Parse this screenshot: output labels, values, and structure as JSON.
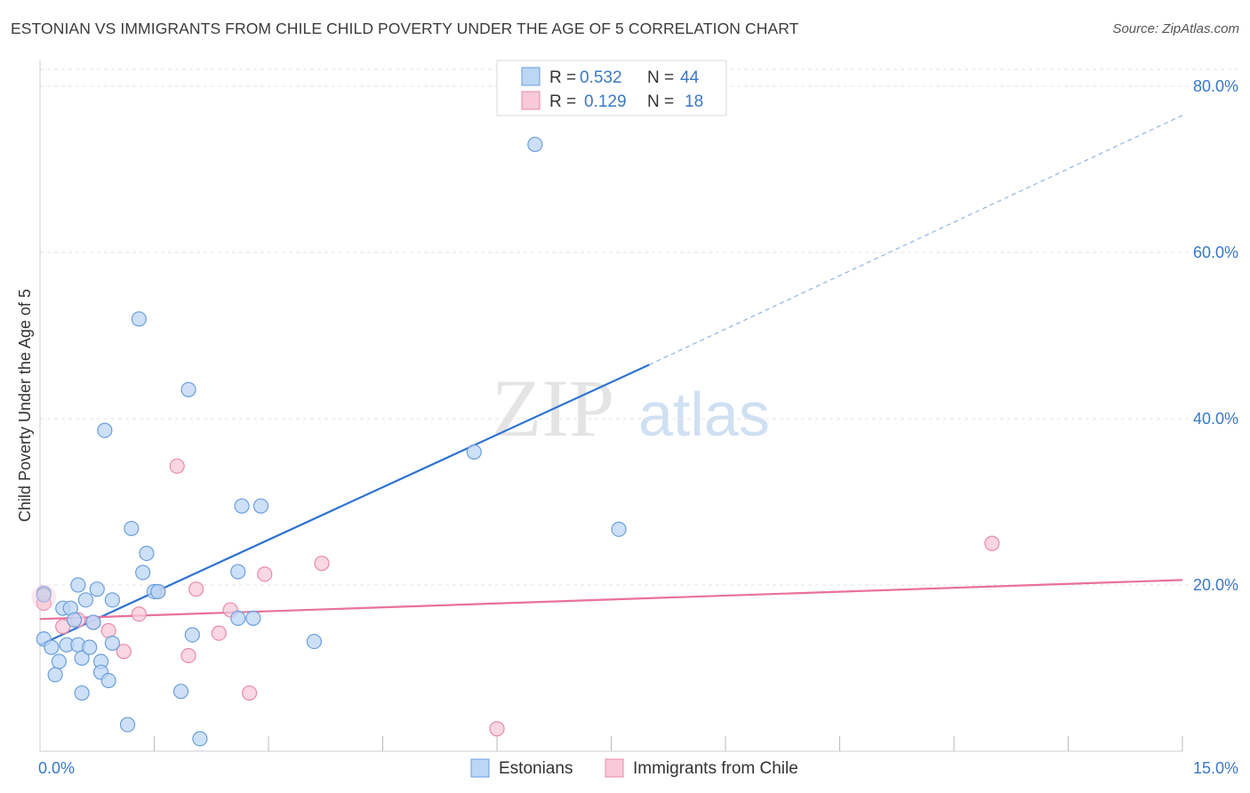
{
  "title": "ESTONIAN VS IMMIGRANTS FROM CHILE CHILD POVERTY UNDER THE AGE OF 5 CORRELATION CHART",
  "source": "Source: ZipAtlas.com",
  "watermark": {
    "zip": "ZIP",
    "atlas": "atlas"
  },
  "colors": {
    "blue_fill": "#bcd6f5",
    "blue_stroke": "#6a9fdc",
    "blue_line": "#2f73cf",
    "pink_fill": "#f8c9d8",
    "pink_stroke": "#e98aa8",
    "pink_line": "#e8719a",
    "axis_text": "#3a78c8",
    "grid": "#e3e3e3"
  },
  "legend": {
    "r_label": "R =",
    "n_label": "N =",
    "rows": [
      {
        "series": "Estonians",
        "r": "0.532",
        "n": "44"
      },
      {
        "series": "Immigrants from Chile",
        "r": "0.129",
        "n": "18"
      }
    ]
  },
  "chart_data": {
    "type": "scatter",
    "title": "ESTONIAN VS IMMIGRANTS FROM CHILE CHILD POVERTY UNDER THE AGE OF 5 CORRELATION CHART",
    "xlabel": "",
    "ylabel": "Child Poverty Under the Age of 5",
    "xlim": [
      0,
      15
    ],
    "ylim": [
      0,
      80
    ],
    "x_tick_labels": [
      {
        "value": 0,
        "label": "0.0%"
      },
      {
        "value": 15,
        "label": "15.0%"
      }
    ],
    "x_minor_ticks": [
      1.5,
      3.0,
      4.5,
      6.0,
      7.5,
      9.0,
      10.5,
      12.0,
      13.5,
      15.0
    ],
    "y_ticks": [
      {
        "value": 20,
        "label": "20.0%"
      },
      {
        "value": 40,
        "label": "40.0%"
      },
      {
        "value": 60,
        "label": "60.0%"
      },
      {
        "value": 80,
        "label": "80.0%"
      }
    ],
    "grid": true,
    "legend_position": "top-center",
    "series": [
      {
        "name": "Estonians",
        "color": "blue",
        "points": [
          [
            0.05,
            19.0
          ],
          [
            0.05,
            13.5
          ],
          [
            0.15,
            12.5
          ],
          [
            0.2,
            9.2
          ],
          [
            0.25,
            10.8
          ],
          [
            0.3,
            17.2
          ],
          [
            0.35,
            12.8
          ],
          [
            0.4,
            17.2
          ],
          [
            0.45,
            15.8
          ],
          [
            0.5,
            12.8
          ],
          [
            0.5,
            20.0
          ],
          [
            0.55,
            7.0
          ],
          [
            0.55,
            11.2
          ],
          [
            0.6,
            18.2
          ],
          [
            0.65,
            12.5
          ],
          [
            0.7,
            15.5
          ],
          [
            0.75,
            19.5
          ],
          [
            0.8,
            10.8
          ],
          [
            0.8,
            9.5
          ],
          [
            0.85,
            38.6
          ],
          [
            0.9,
            8.5
          ],
          [
            0.95,
            13.0
          ],
          [
            0.95,
            18.2
          ],
          [
            1.15,
            3.2
          ],
          [
            1.2,
            26.8
          ],
          [
            1.3,
            52.0
          ],
          [
            1.35,
            21.5
          ],
          [
            1.4,
            23.8
          ],
          [
            1.5,
            19.2
          ],
          [
            1.55,
            19.2
          ],
          [
            1.85,
            7.2
          ],
          [
            1.95,
            43.5
          ],
          [
            2.0,
            14.0
          ],
          [
            2.1,
            1.5
          ],
          [
            2.6,
            16.0
          ],
          [
            2.6,
            21.6
          ],
          [
            2.65,
            29.5
          ],
          [
            2.8,
            16.0
          ],
          [
            2.9,
            29.5
          ],
          [
            3.6,
            13.2
          ],
          [
            5.7,
            36.0
          ],
          [
            6.5,
            73.0
          ],
          [
            7.6,
            26.7
          ],
          [
            0.05,
            18.8
          ]
        ],
        "trendline": {
          "x0": 0.0,
          "y0": 12.8,
          "x1": 8.0,
          "y1": 46.5,
          "dashed_to_x": 15.0,
          "dashed_to_y": 76.5
        }
      },
      {
        "name": "Immigrants from Chile",
        "color": "pink",
        "points": [
          [
            0.05,
            17.8
          ],
          [
            0.3,
            15.0
          ],
          [
            0.5,
            15.8
          ],
          [
            0.7,
            15.5
          ],
          [
            0.9,
            14.5
          ],
          [
            1.1,
            12.0
          ],
          [
            1.3,
            16.5
          ],
          [
            1.55,
            19.2
          ],
          [
            1.8,
            34.3
          ],
          [
            1.95,
            11.5
          ],
          [
            2.05,
            19.5
          ],
          [
            2.35,
            14.2
          ],
          [
            2.5,
            17.0
          ],
          [
            2.75,
            7.0
          ],
          [
            2.95,
            21.3
          ],
          [
            3.7,
            22.6
          ],
          [
            6.0,
            2.7
          ],
          [
            12.5,
            25.0
          ]
        ],
        "trendline": {
          "x0": 0.0,
          "y0": 15.9,
          "x1": 15.0,
          "y1": 20.6
        }
      }
    ]
  }
}
